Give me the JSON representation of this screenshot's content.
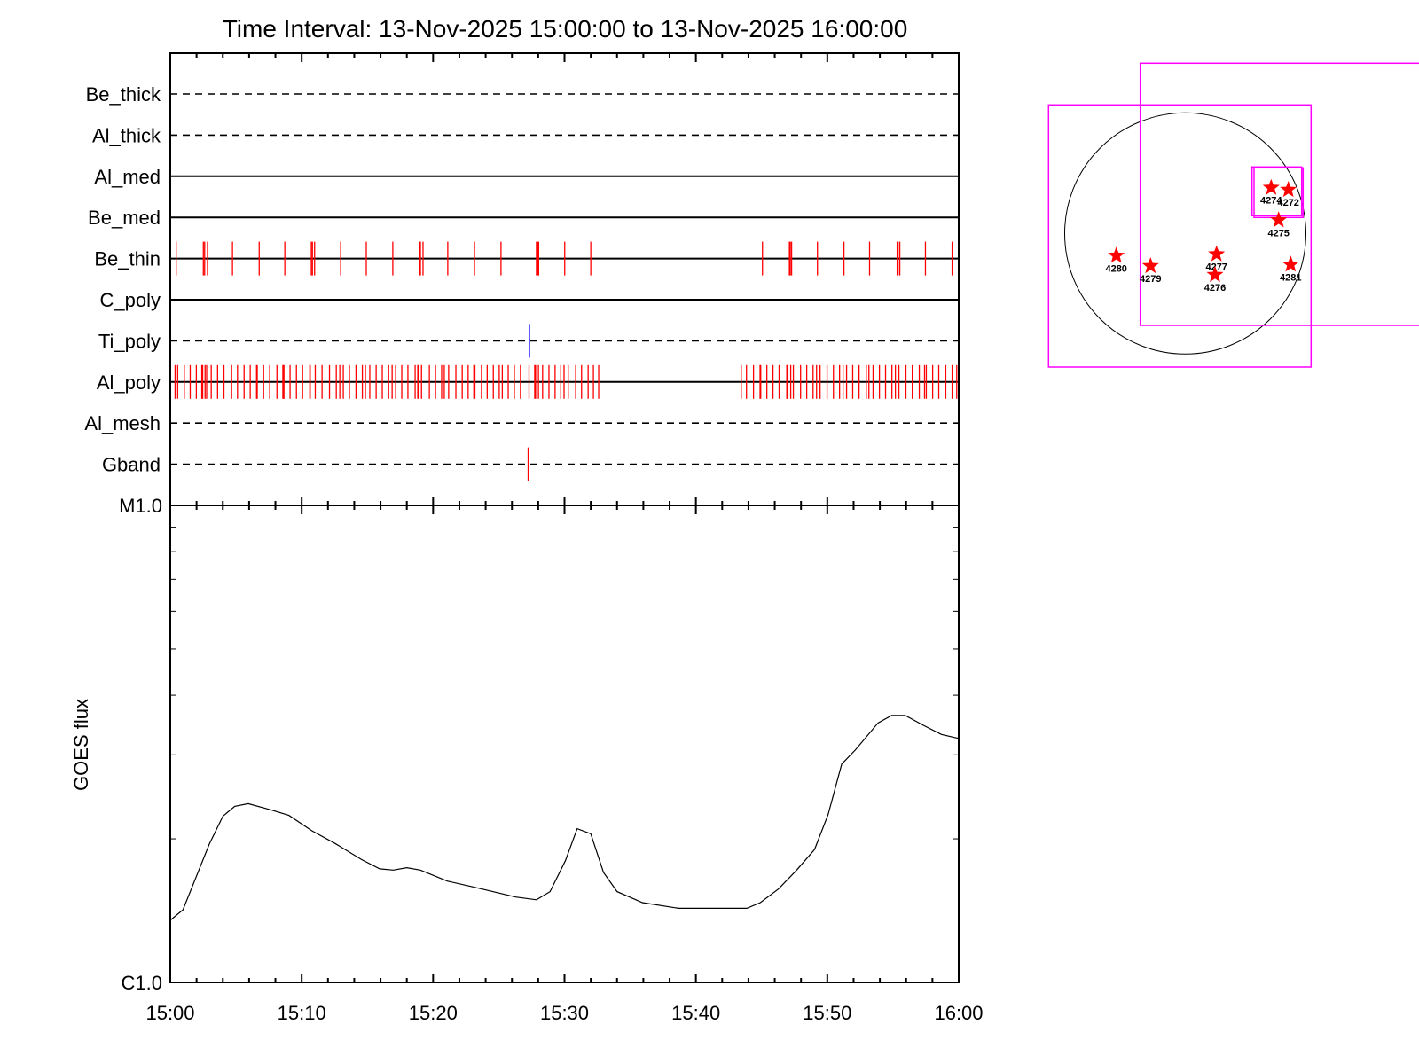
{
  "chart_data": [
    {
      "type": "event-timeline",
      "title": "Time Interval: 13-Nov-2025 15:00:00 to 13-Nov-2025 16:00:00",
      "xlim": [
        "15:00:00",
        "16:00:00"
      ],
      "xticks": [
        "15:00",
        "15:10",
        "15:20",
        "15:30",
        "15:40",
        "15:50",
        "16:00"
      ],
      "rows": [
        {
          "name": "Be_thick",
          "line": "dashed",
          "events": []
        },
        {
          "name": "Al_thick",
          "line": "dashed",
          "events": []
        },
        {
          "name": "Al_med",
          "line": "solid",
          "events": []
        },
        {
          "name": "Be_med",
          "line": "solid",
          "events": []
        },
        {
          "name": "Be_thin",
          "line": "solid",
          "event_color": "#ff0000",
          "events": [
            "15:00:27",
            "15:02:31",
            "15:02:37",
            "15:02:50",
            "15:04:44",
            "15:06:46",
            "15:08:43",
            "15:10:44",
            "15:10:49",
            "15:10:59",
            "15:12:58",
            "15:14:55",
            "15:16:56",
            "15:18:58",
            "15:19:02",
            "15:19:14",
            "15:21:07",
            "15:23:09",
            "15:25:10",
            "15:27:52",
            "15:27:58",
            "15:28:02",
            "15:30:01",
            "15:32:00",
            "15:45:04",
            "15:47:07",
            "15:47:11",
            "15:47:17",
            "15:49:15",
            "15:51:16",
            "15:53:13",
            "15:55:19",
            "15:55:23",
            "15:55:31",
            "15:57:28",
            "15:59:30"
          ]
        },
        {
          "name": "C_poly",
          "line": "solid",
          "events": []
        },
        {
          "name": "Ti_poly",
          "line": "dashed",
          "event_color": "#0000ff",
          "events": [
            "15:27:20"
          ]
        },
        {
          "name": "Al_poly",
          "line": "solid",
          "event_color": "#ff0000",
          "events": [
            "15:00:01",
            "15:00:22",
            "15:00:34",
            "15:01:04",
            "15:01:31",
            "15:01:59",
            "15:02:24",
            "15:02:28",
            "15:02:39",
            "15:02:46",
            "15:03:07",
            "15:03:36",
            "15:04:05",
            "15:04:38",
            "15:04:40",
            "15:05:07",
            "15:05:37",
            "15:06:05",
            "15:06:34",
            "15:06:37",
            "15:07:06",
            "15:07:34",
            "15:08:07",
            "15:08:34",
            "15:08:37",
            "15:08:39",
            "15:09:07",
            "15:09:36",
            "15:10:04",
            "15:10:37",
            "15:10:39",
            "15:11:02",
            "15:11:33",
            "15:12:07",
            "15:12:38",
            "15:12:54",
            "15:13:10",
            "15:13:38",
            "15:14:08",
            "15:14:37",
            "15:14:51",
            "15:15:11",
            "15:15:40",
            "15:16:08",
            "15:16:37",
            "15:16:53",
            "15:17:09",
            "15:17:37",
            "15:18:05",
            "15:18:38",
            "15:18:50",
            "15:18:54",
            "15:19:07",
            "15:19:43",
            "15:20:11",
            "15:20:39",
            "15:20:51",
            "15:21:11",
            "15:21:44",
            "15:22:13",
            "15:22:40",
            "15:23:06",
            "15:23:11",
            "15:23:41",
            "15:24:07",
            "15:24:35",
            "15:25:02",
            "15:25:16",
            "15:25:43",
            "15:26:11",
            "15:26:39",
            "15:27:18",
            "15:27:44",
            "15:27:48",
            "15:28:01",
            "15:28:20",
            "15:28:49",
            "15:29:17",
            "15:29:43",
            "15:29:58",
            "15:30:17",
            "15:30:51",
            "15:31:18",
            "15:31:48",
            "15:32:12",
            "15:32:36",
            "15:43:27",
            "15:43:51",
            "15:44:23",
            "15:44:53",
            "15:44:56",
            "15:45:24",
            "15:45:52",
            "15:46:20",
            "15:46:55",
            "15:46:57",
            "15:47:00",
            "15:47:13",
            "15:47:25",
            "15:47:58",
            "15:48:26",
            "15:48:55",
            "15:49:11",
            "15:49:27",
            "15:49:59",
            "15:50:28",
            "15:50:56",
            "15:51:12",
            "15:51:28",
            "15:51:56",
            "15:52:25",
            "15:52:58",
            "15:53:10",
            "15:53:29",
            "15:53:58",
            "15:54:26",
            "15:54:55",
            "15:55:11",
            "15:55:27",
            "15:55:59",
            "15:56:28",
            "15:57:00",
            "15:57:24",
            "15:57:32",
            "15:58:01",
            "15:58:29",
            "15:59:01",
            "15:59:30",
            "15:59:51"
          ]
        },
        {
          "name": "Al_mesh",
          "line": "dashed",
          "events": []
        },
        {
          "name": "Gband",
          "line": "dashed",
          "event_color": "#ff0000",
          "events": [
            "15:27:14"
          ]
        }
      ]
    },
    {
      "type": "line",
      "ylabel": "GOES flux",
      "yscale": "log",
      "ylim": [
        1e-06,
        1e-05
      ],
      "yticks": [
        {
          "value": 1e-05,
          "label": "M1.0"
        },
        {
          "value": 1e-06,
          "label": "C1.0"
        }
      ],
      "xlim": [
        "15:00:00",
        "16:00:00"
      ],
      "xticks": [
        "15:00",
        "15:10",
        "15:20",
        "15:30",
        "15:40",
        "15:50",
        "16:00"
      ],
      "line_color": "#000000",
      "x": [
        "15:00:00",
        "15:00:58",
        "15:02:58",
        "15:04:00",
        "15:04:54",
        "15:05:56",
        "15:07:40",
        "15:09:02",
        "15:10:46",
        "15:12:29",
        "15:14:33",
        "15:15:56",
        "15:16:58",
        "15:18:00",
        "15:19:02",
        "15:21:06",
        "15:22:50",
        "15:24:33",
        "15:26:17",
        "15:27:52",
        "15:28:54",
        "15:30:04",
        "15:30:58",
        "15:32:00",
        "15:32:58",
        "15:34:00",
        "15:35:56",
        "15:38:41",
        "15:41:06",
        "15:42:08",
        "15:43:52",
        "15:44:54",
        "15:46:17",
        "15:47:40",
        "15:49:02",
        "15:50:04",
        "15:51:06",
        "15:52:08",
        "15:53:52",
        "15:54:54",
        "15:55:56",
        "15:57:19",
        "15:58:41",
        "15:59:56"
      ],
      "y": [
        1.35e-06,
        1.42e-06,
        1.95e-06,
        2.23e-06,
        2.34e-06,
        2.37e-06,
        2.3e-06,
        2.24e-06,
        2.08e-06,
        1.96e-06,
        1.81e-06,
        1.73e-06,
        1.72e-06,
        1.74e-06,
        1.72e-06,
        1.63e-06,
        1.59e-06,
        1.55e-06,
        1.51e-06,
        1.49e-06,
        1.55e-06,
        1.8e-06,
        2.1e-06,
        2.05e-06,
        1.7e-06,
        1.55e-06,
        1.47e-06,
        1.43e-06,
        1.43e-06,
        1.43e-06,
        1.43e-06,
        1.47e-06,
        1.57e-06,
        1.72e-06,
        1.9e-06,
        2.25e-06,
        2.87e-06,
        3.07e-06,
        3.5e-06,
        3.63e-06,
        3.63e-06,
        3.46e-06,
        3.31e-06,
        3.25e-06
      ]
    },
    {
      "type": "solar-disk-map",
      "box_color": "#ff00ff",
      "marker_color": "#ff0000",
      "active_regions": [
        "4274",
        "4272",
        "4275",
        "4280",
        "4279",
        "4277",
        "4276",
        "4281"
      ]
    }
  ]
}
